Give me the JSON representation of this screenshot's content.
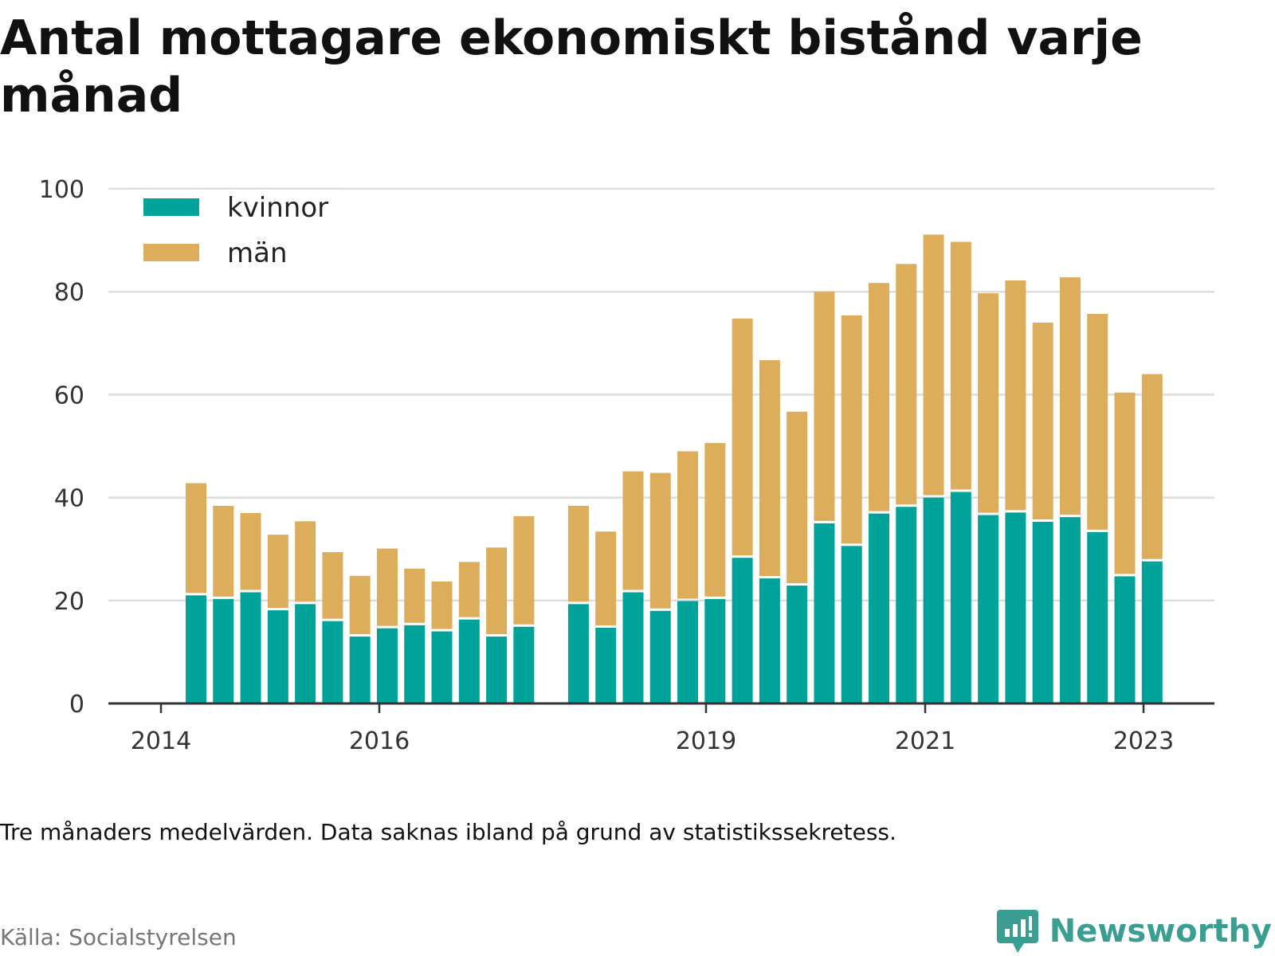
{
  "title": "Antal mottagare ekonomiskt bistånd varje månad",
  "note": "Tre månaders medelvärden. Data saknas ibland på grund av statistikssekretess.",
  "source": "Källa: Socialstyrelsen",
  "brand": "Newsworthy",
  "colors": {
    "kvinnor": "#00a39a",
    "man": "#dcae5c",
    "grid": "#dddddd",
    "axis": "#333333",
    "brand": "#3a9e93"
  },
  "chart_data": {
    "type": "bar",
    "stacked": true,
    "ylim": [
      0,
      100
    ],
    "yticks": [
      0,
      20,
      40,
      60,
      80,
      100
    ],
    "xticks": [
      "2014",
      "2016",
      "2019",
      "2021",
      "2023"
    ],
    "grid": true,
    "legend_position": "top-left",
    "series": [
      {
        "name": "kvinnor",
        "values": [
          21,
          20.3,
          21.6,
          18.1,
          19.3,
          16,
          13,
          14.6,
          15.2,
          14,
          16.3,
          13,
          14.9,
          null,
          19.3,
          14.7,
          21.6,
          18,
          19.9,
          20.3,
          28.3,
          24.3,
          22.9,
          35,
          30.6,
          36.9,
          38.2,
          40,
          41.1,
          36.6,
          37.1,
          35.3,
          36.2,
          33.3,
          24.7,
          27.6
        ]
      },
      {
        "name": "män",
        "values": [
          21.8,
          18.1,
          15.4,
          14.7,
          16.1,
          13.4,
          11.8,
          15.5,
          11,
          9.7,
          11.2,
          17.3,
          21.5,
          null,
          19.1,
          18.7,
          23.5,
          26.8,
          29.1,
          30.3,
          46.5,
          42.4,
          33.8,
          45,
          44.8,
          44.8,
          47.2,
          51.1,
          48.6,
          43.1,
          45.1,
          38.7,
          46.6,
          42.4,
          35.7,
          36.4
        ]
      }
    ]
  }
}
